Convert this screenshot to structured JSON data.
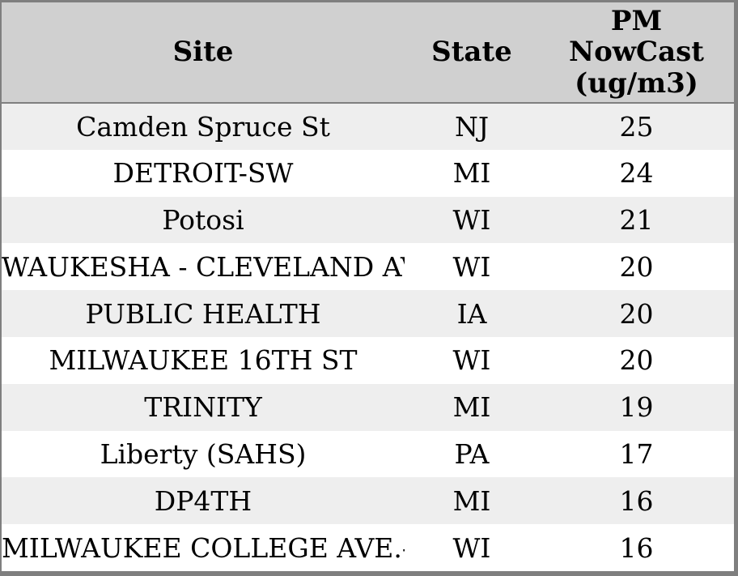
{
  "colors": {
    "frame_border": "#7f7f7f",
    "header_background": "#d0d0d0",
    "stripe_row_background": "#eeeeee",
    "plain_row_background": "#ffffff",
    "text": "#000000"
  },
  "table": {
    "columns": {
      "site_label": "Site",
      "state_label": "State",
      "pm_label": "PM\nNowCast\n(ug/m3)"
    },
    "rows": [
      {
        "site": "Camden Spruce St",
        "state": "NJ",
        "pm": "25"
      },
      {
        "site": "DETROIT-SW",
        "state": "MI",
        "pm": "24"
      },
      {
        "site": "Potosi",
        "state": "WI",
        "pm": "21"
      },
      {
        "site": "WAUKESHA - CLEVELAND AVE",
        "state": "WI",
        "pm": "20"
      },
      {
        "site": "PUBLIC HEALTH",
        "state": "IA",
        "pm": "20"
      },
      {
        "site": "MILWAUKEE 16TH ST",
        "state": "WI",
        "pm": "20"
      },
      {
        "site": "TRINITY",
        "state": "MI",
        "pm": "19"
      },
      {
        "site": "Liberty (SAHS)",
        "state": "PA",
        "pm": "17"
      },
      {
        "site": "DP4TH",
        "state": "MI",
        "pm": "16"
      },
      {
        "site": "MILWAUKEE COLLEGE AVE.-NR",
        "state": "WI",
        "pm": "16"
      }
    ]
  },
  "chart_data": {
    "type": "table",
    "title": "",
    "columns": [
      "Site",
      "State",
      "PM NowCast (ug/m3)"
    ],
    "categories": [
      "Camden Spruce St",
      "DETROIT-SW",
      "Potosi",
      "WAUKESHA - CLEVELAND AVE",
      "PUBLIC HEALTH",
      "MILWAUKEE 16TH ST",
      "TRINITY",
      "Liberty (SAHS)",
      "DP4TH",
      "MILWAUKEE COLLEGE AVE.-NR"
    ],
    "states": [
      "NJ",
      "MI",
      "WI",
      "WI",
      "IA",
      "WI",
      "MI",
      "PA",
      "MI",
      "WI"
    ],
    "values": [
      25,
      24,
      21,
      20,
      20,
      20,
      19,
      17,
      16,
      16
    ],
    "ylabel": "PM NowCast (ug/m3)"
  }
}
